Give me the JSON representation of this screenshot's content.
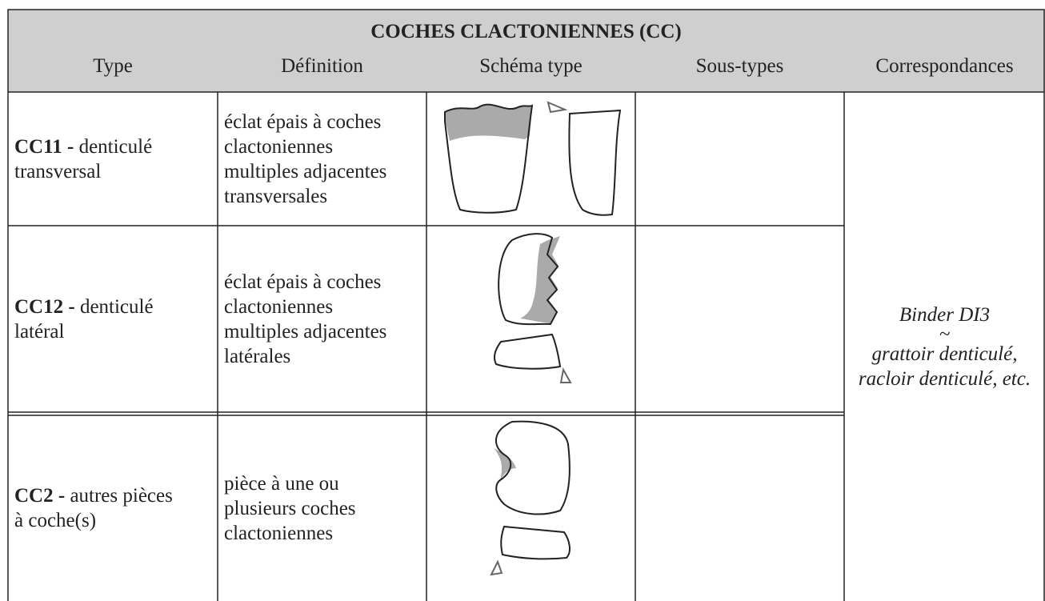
{
  "header": {
    "title": "COCHES CLACTONIENNES (CC)",
    "columns": [
      "Type",
      "Définition",
      "Schéma type",
      "Sous-types",
      "Correspondances"
    ]
  },
  "rows": [
    {
      "code": "CC11 -",
      "type_lines": [
        "denticulé",
        "transversal"
      ],
      "definition_lines": [
        "éclat épais à coches",
        "clactoniennes",
        "multiples adjacentes",
        "transversales"
      ]
    },
    {
      "code": "CC12 -",
      "type_lines": [
        "denticulé",
        "latéral"
      ],
      "definition_lines": [
        "éclat épais à coches",
        "clactoniennes",
        "multiples adjacentes",
        "latérales"
      ]
    },
    {
      "code": "CC2 -",
      "type_lines": [
        "autres pièces",
        "à coche(s)"
      ],
      "definition_lines": [
        "pièce à une ou",
        "plusieurs coches",
        "clactoniennes"
      ]
    }
  ],
  "correspondence_lines": [
    "Binder DI3",
    "~",
    "grattoir denticulé,",
    "racloir denticulé, etc."
  ]
}
